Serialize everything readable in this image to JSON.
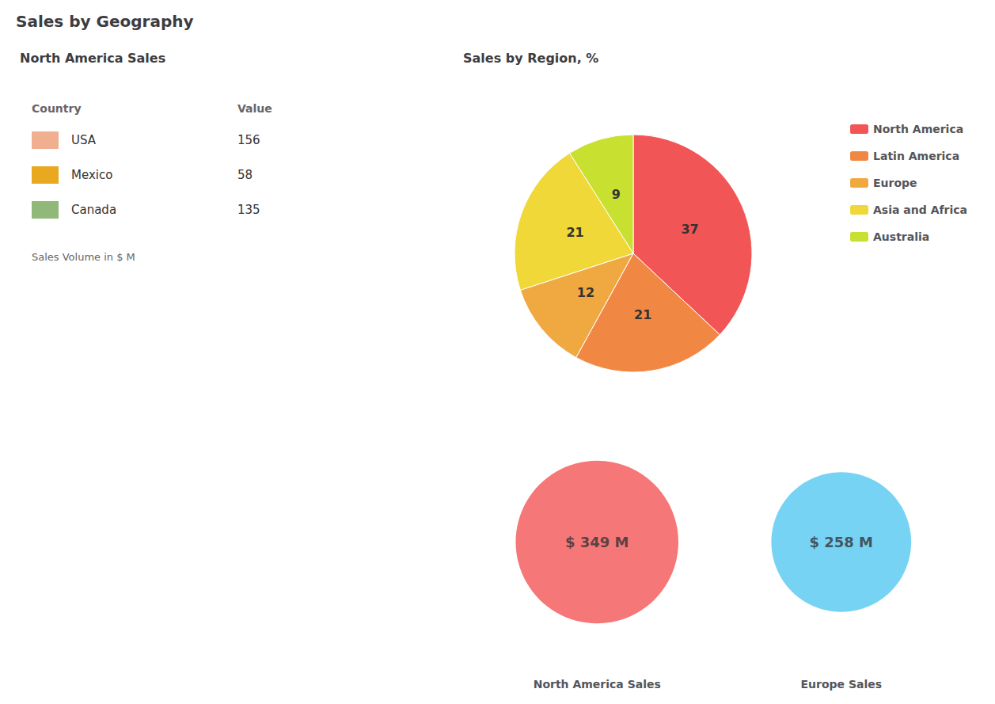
{
  "title": "Sales by Geography",
  "chart_data": [
    {
      "type": "table",
      "title": "North America Sales",
      "categories": [
        "USA",
        "Mexico",
        "Canada"
      ],
      "values": [
        156,
        58,
        135
      ],
      "colors": [
        "#f0b090",
        "#e8a820",
        "#90b878"
      ],
      "annotations": [
        "Country",
        "Value",
        "Sales Volume in $ M"
      ]
    },
    {
      "type": "pie",
      "title": "Sales by Region, %",
      "categories": [
        "North America",
        "Latin America",
        "Europe",
        "Asia and Africa",
        "Australia"
      ],
      "values": [
        37,
        21,
        12,
        21,
        9
      ],
      "colors": [
        "#f25555",
        "#f08844",
        "#f0a840",
        "#f0d838",
        "#c8e030"
      ],
      "data_labels": true,
      "legend": "right"
    },
    {
      "type": "bubble",
      "categories": [
        "North America Sales",
        "Europe Sales"
      ],
      "values": [
        349,
        258
      ],
      "value_labels": [
        "$ 349 M",
        "$ 258 M"
      ],
      "colors": [
        "#f25555",
        "#55c8f0"
      ],
      "data_labels": true,
      "tick_labels": "x",
      "grid": false
    }
  ]
}
